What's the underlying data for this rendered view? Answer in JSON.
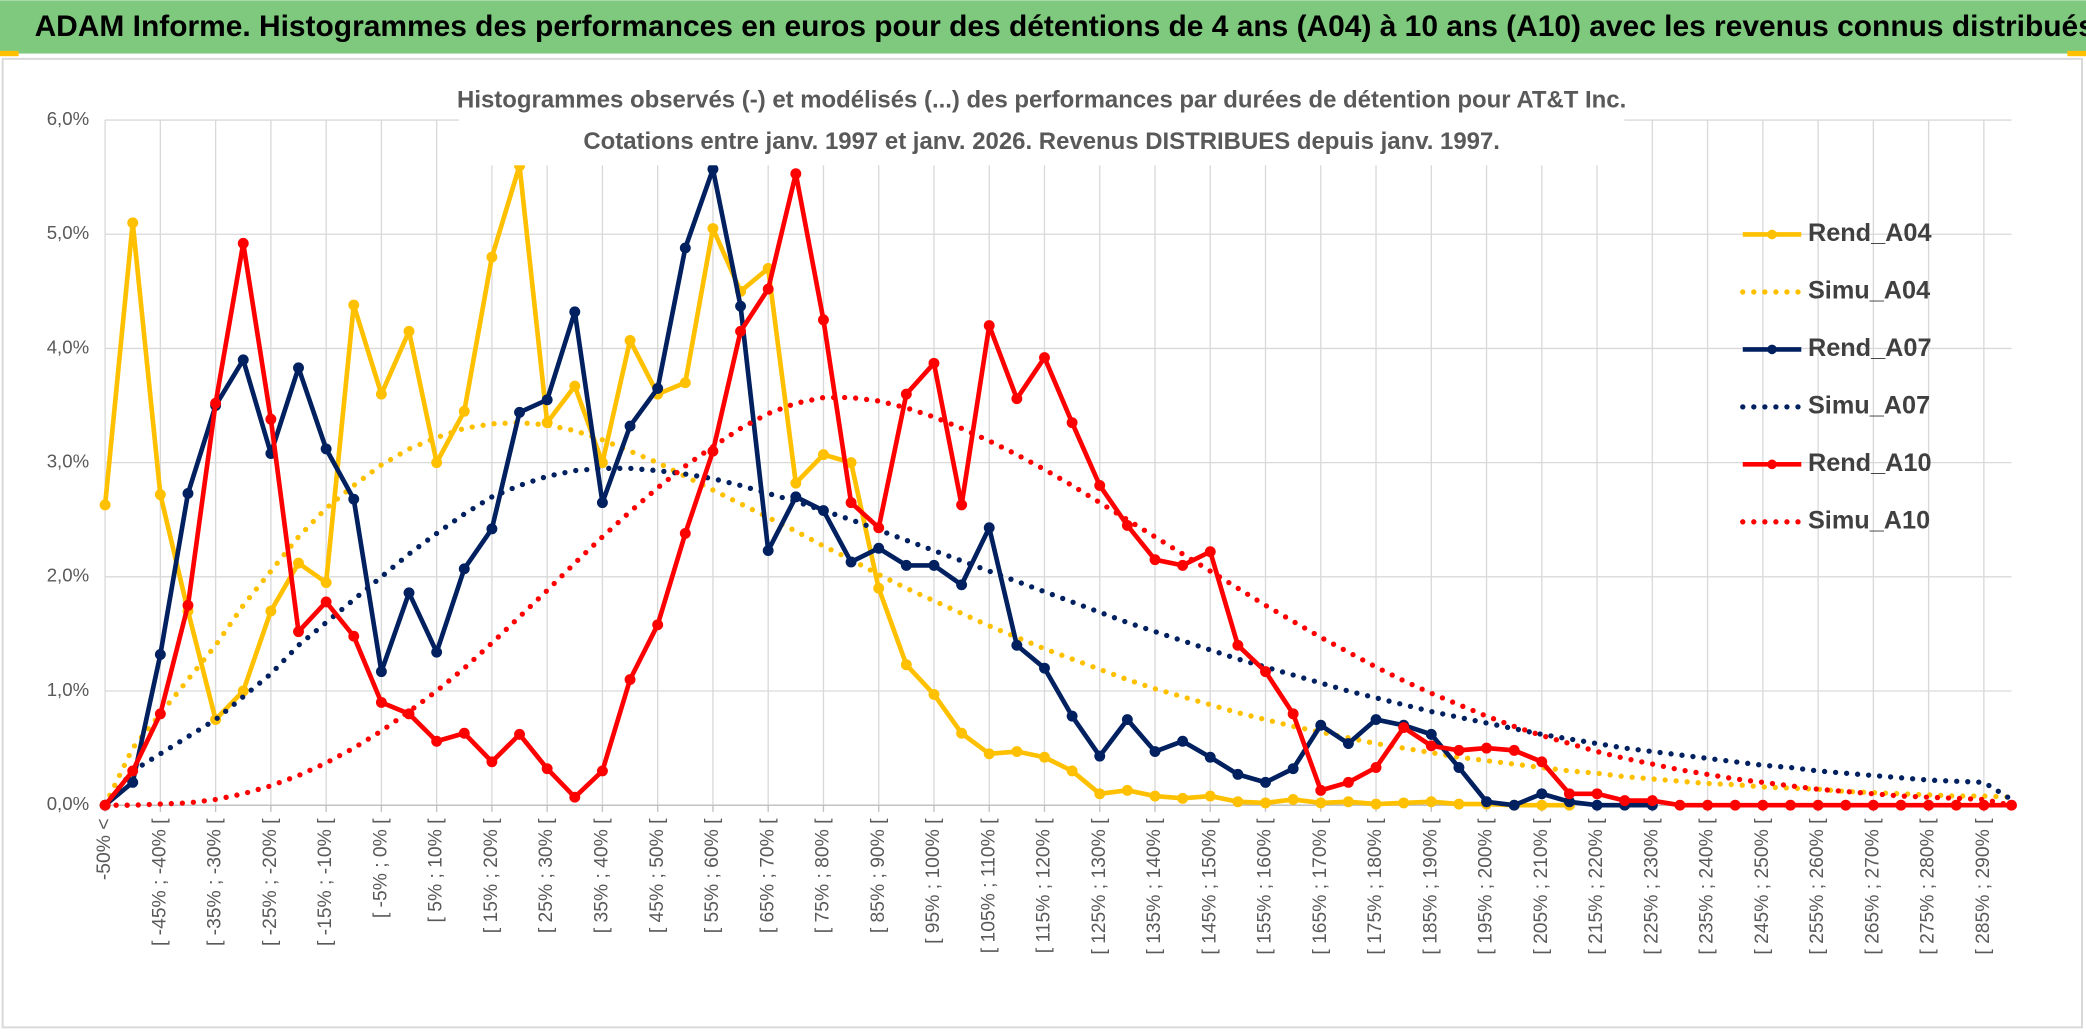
{
  "header": {
    "title": "ADAM Informe. Histogrammes des performances en euros pour des détentions de 4 ans (A04) à 10 ans (A10) avec les revenus connus distribués"
  },
  "chart_data": {
    "type": "line",
    "title": [
      "Histogrammes observés (-) et modélisés (...) des performances par durées de détention pour AT&T Inc.",
      "Cotations entre janv. 1997 et janv. 2026. Revenus DISTRIBUES depuis janv. 1997."
    ],
    "categories": [
      "-50% <",
      null,
      "[ -45% ; -40% [",
      null,
      "[ -35% ; -30% [",
      null,
      "[ -25% ; -20% [",
      null,
      "[ -15% ; -10% [",
      null,
      "[ -5% ; 0% [",
      null,
      "[ 5% ; 10% [",
      null,
      "[ 15% ; 20% [",
      null,
      "[ 25% ; 30% [",
      null,
      "[ 35% ; 40% [",
      null,
      "[ 45% ; 50% [",
      null,
      "[ 55% ; 60% [",
      null,
      "[ 65% ; 70% [",
      null,
      "[ 75% ; 80% [",
      null,
      "[ 85% ; 90% [",
      null,
      "[ 95% ; 100% [",
      null,
      "[ 105% ; 110% [",
      null,
      "[ 115% ; 120% [",
      null,
      "[ 125% ; 130% [",
      null,
      "[ 135% ; 140% [",
      null,
      "[ 145% ; 150% [",
      null,
      "[ 155% ; 160% [",
      null,
      "[ 165% ; 170% [",
      null,
      "[ 175% ; 180% [",
      null,
      "[ 185% ; 190% [",
      null,
      "[ 195% ; 200% [",
      null,
      "[ 205% ; 210% [",
      null,
      "[ 215% ; 220% [",
      null,
      "[ 225% ; 230% [",
      null,
      "[ 235% ; 240% [",
      null,
      "[ 245% ; 250% [",
      null,
      "[ 255% ; 260% [",
      null,
      "[ 265% ; 270% [",
      null,
      "[ 275% ; 280% [",
      null,
      "[ 285% ; 290% [",
      null
    ],
    "ylim": [
      0,
      6
    ],
    "yticks": [
      {
        "value": 0,
        "label": "0,0%"
      },
      {
        "value": 1,
        "label": "1,0%"
      },
      {
        "value": 2,
        "label": "2,0%"
      },
      {
        "value": 3,
        "label": "3,0%"
      },
      {
        "value": 4,
        "label": "4,0%"
      },
      {
        "value": 5,
        "label": "5,0%"
      },
      {
        "value": 6,
        "label": "6,0%"
      }
    ],
    "grid": true,
    "legend": "right",
    "series": [
      {
        "name": "Rend_A04",
        "color": "#ffc000",
        "style": "solid",
        "markers": true,
        "values": [
          2.63,
          5.1,
          2.72,
          1.7,
          0.75,
          1.0,
          1.7,
          2.12,
          1.95,
          4.38,
          3.6,
          4.15,
          3.0,
          3.45,
          4.8,
          5.6,
          3.35,
          3.67,
          3.0,
          4.07,
          3.6,
          3.7,
          5.05,
          4.5,
          4.7,
          2.82,
          3.07,
          3.0,
          1.9,
          1.23,
          0.97,
          0.63,
          0.45,
          0.47,
          0.42,
          0.3,
          0.1,
          0.13,
          0.08,
          0.06,
          0.08,
          0.03,
          0.02,
          0.05,
          0.02,
          0.03,
          0.01,
          0.02,
          0.03,
          0.01,
          0.01,
          0,
          0,
          0,
          null,
          null,
          null,
          null,
          null,
          null,
          null,
          null,
          null,
          null,
          null,
          null,
          null,
          null,
          null,
          null
        ]
      },
      {
        "name": "Simu_A04",
        "color": "#ffc000",
        "style": "dotted",
        "markers": false,
        "values": [
          0,
          0.5,
          0.8,
          1.1,
          1.4,
          1.75,
          2.05,
          2.35,
          2.6,
          2.8,
          2.98,
          3.12,
          3.22,
          3.3,
          3.34,
          3.35,
          3.33,
          3.28,
          3.2,
          3.1,
          3.0,
          2.88,
          2.76,
          2.64,
          2.52,
          2.4,
          2.27,
          2.15,
          2.02,
          1.9,
          1.79,
          1.68,
          1.57,
          1.47,
          1.37,
          1.28,
          1.19,
          1.1,
          1.02,
          0.95,
          0.88,
          0.81,
          0.75,
          0.69,
          0.64,
          0.59,
          0.54,
          0.5,
          0.46,
          0.42,
          0.39,
          0.36,
          0.33,
          0.3,
          0.28,
          0.25,
          0.23,
          0.21,
          0.19,
          0.18,
          0.16,
          0.15,
          0.14,
          0.12,
          0.11,
          0.1,
          0.09,
          0.08,
          0.08,
          0.07
        ]
      },
      {
        "name": "Rend_A07",
        "color": "#002060",
        "style": "solid",
        "markers": true,
        "values": [
          0,
          0.2,
          1.32,
          2.73,
          3.5,
          3.9,
          3.08,
          3.83,
          3.12,
          2.68,
          1.17,
          1.86,
          1.34,
          2.07,
          2.42,
          3.44,
          3.55,
          4.32,
          2.65,
          3.32,
          3.65,
          4.88,
          5.57,
          4.37,
          2.23,
          2.7,
          2.58,
          2.13,
          2.25,
          2.1,
          2.1,
          1.93,
          2.43,
          1.4,
          1.2,
          0.78,
          0.43,
          0.75,
          0.47,
          0.56,
          0.42,
          0.27,
          0.2,
          0.32,
          0.7,
          0.54,
          0.75,
          0.7,
          0.62,
          0.33,
          0.03,
          0,
          0.1,
          0.03,
          0,
          0,
          0,
          null,
          null,
          null,
          null,
          null,
          null,
          null,
          null,
          null,
          null,
          null,
          null,
          null
        ]
      },
      {
        "name": "Simu_A07",
        "color": "#002060",
        "style": "dotted",
        "markers": false,
        "values": [
          0,
          0.3,
          0.45,
          0.6,
          0.75,
          0.95,
          1.15,
          1.4,
          1.6,
          1.8,
          2.0,
          2.2,
          2.38,
          2.55,
          2.7,
          2.8,
          2.88,
          2.93,
          2.95,
          2.95,
          2.93,
          2.9,
          2.86,
          2.8,
          2.73,
          2.66,
          2.58,
          2.5,
          2.41,
          2.32,
          2.23,
          2.14,
          2.05,
          1.96,
          1.87,
          1.78,
          1.69,
          1.6,
          1.52,
          1.44,
          1.36,
          1.28,
          1.21,
          1.14,
          1.07,
          1.0,
          0.94,
          0.88,
          0.82,
          0.77,
          0.72,
          0.67,
          0.62,
          0.58,
          0.54,
          0.5,
          0.47,
          0.44,
          0.41,
          0.38,
          0.35,
          0.33,
          0.3,
          0.28,
          0.26,
          0.24,
          0.22,
          0.21,
          0.2,
          0.05
        ]
      },
      {
        "name": "Rend_A10",
        "color": "#ff0000",
        "style": "solid",
        "markers": true,
        "values": [
          0,
          0.3,
          0.8,
          1.75,
          3.52,
          4.92,
          3.38,
          1.52,
          1.78,
          1.48,
          0.9,
          0.8,
          0.56,
          0.63,
          0.38,
          0.62,
          0.32,
          0.07,
          0.3,
          1.1,
          1.58,
          2.38,
          3.1,
          4.15,
          4.52,
          5.53,
          4.25,
          2.65,
          2.43,
          3.6,
          3.87,
          2.63,
          4.2,
          3.56,
          3.92,
          3.35,
          2.8,
          2.45,
          2.15,
          2.1,
          2.22,
          1.4,
          1.17,
          0.8,
          0.13,
          0.2,
          0.33,
          0.68,
          0.52,
          0.48,
          0.5,
          0.48,
          0.38,
          0.1,
          0.1,
          0.04,
          0.04,
          0,
          0,
          0,
          0,
          0,
          0,
          0,
          0,
          0,
          0,
          0,
          0,
          0
        ]
      },
      {
        "name": "Simu_A10",
        "color": "#ff0000",
        "style": "dotted",
        "markers": false,
        "values": [
          0,
          0,
          0.01,
          0.02,
          0.05,
          0.1,
          0.17,
          0.26,
          0.37,
          0.5,
          0.65,
          0.82,
          1.0,
          1.2,
          1.42,
          1.65,
          1.88,
          2.12,
          2.35,
          2.57,
          2.78,
          2.97,
          3.14,
          3.3,
          3.43,
          3.52,
          3.57,
          3.57,
          3.54,
          3.48,
          3.4,
          3.3,
          3.19,
          3.07,
          2.94,
          2.8,
          2.65,
          2.5,
          2.35,
          2.2,
          2.05,
          1.9,
          1.75,
          1.61,
          1.47,
          1.34,
          1.21,
          1.09,
          0.98,
          0.88,
          0.78,
          0.69,
          0.61,
          0.54,
          0.47,
          0.41,
          0.36,
          0.31,
          0.27,
          0.23,
          0.2,
          0.17,
          0.14,
          0.12,
          0.1,
          0.08,
          0.07,
          0.06,
          0.05,
          0.0
        ]
      }
    ]
  }
}
